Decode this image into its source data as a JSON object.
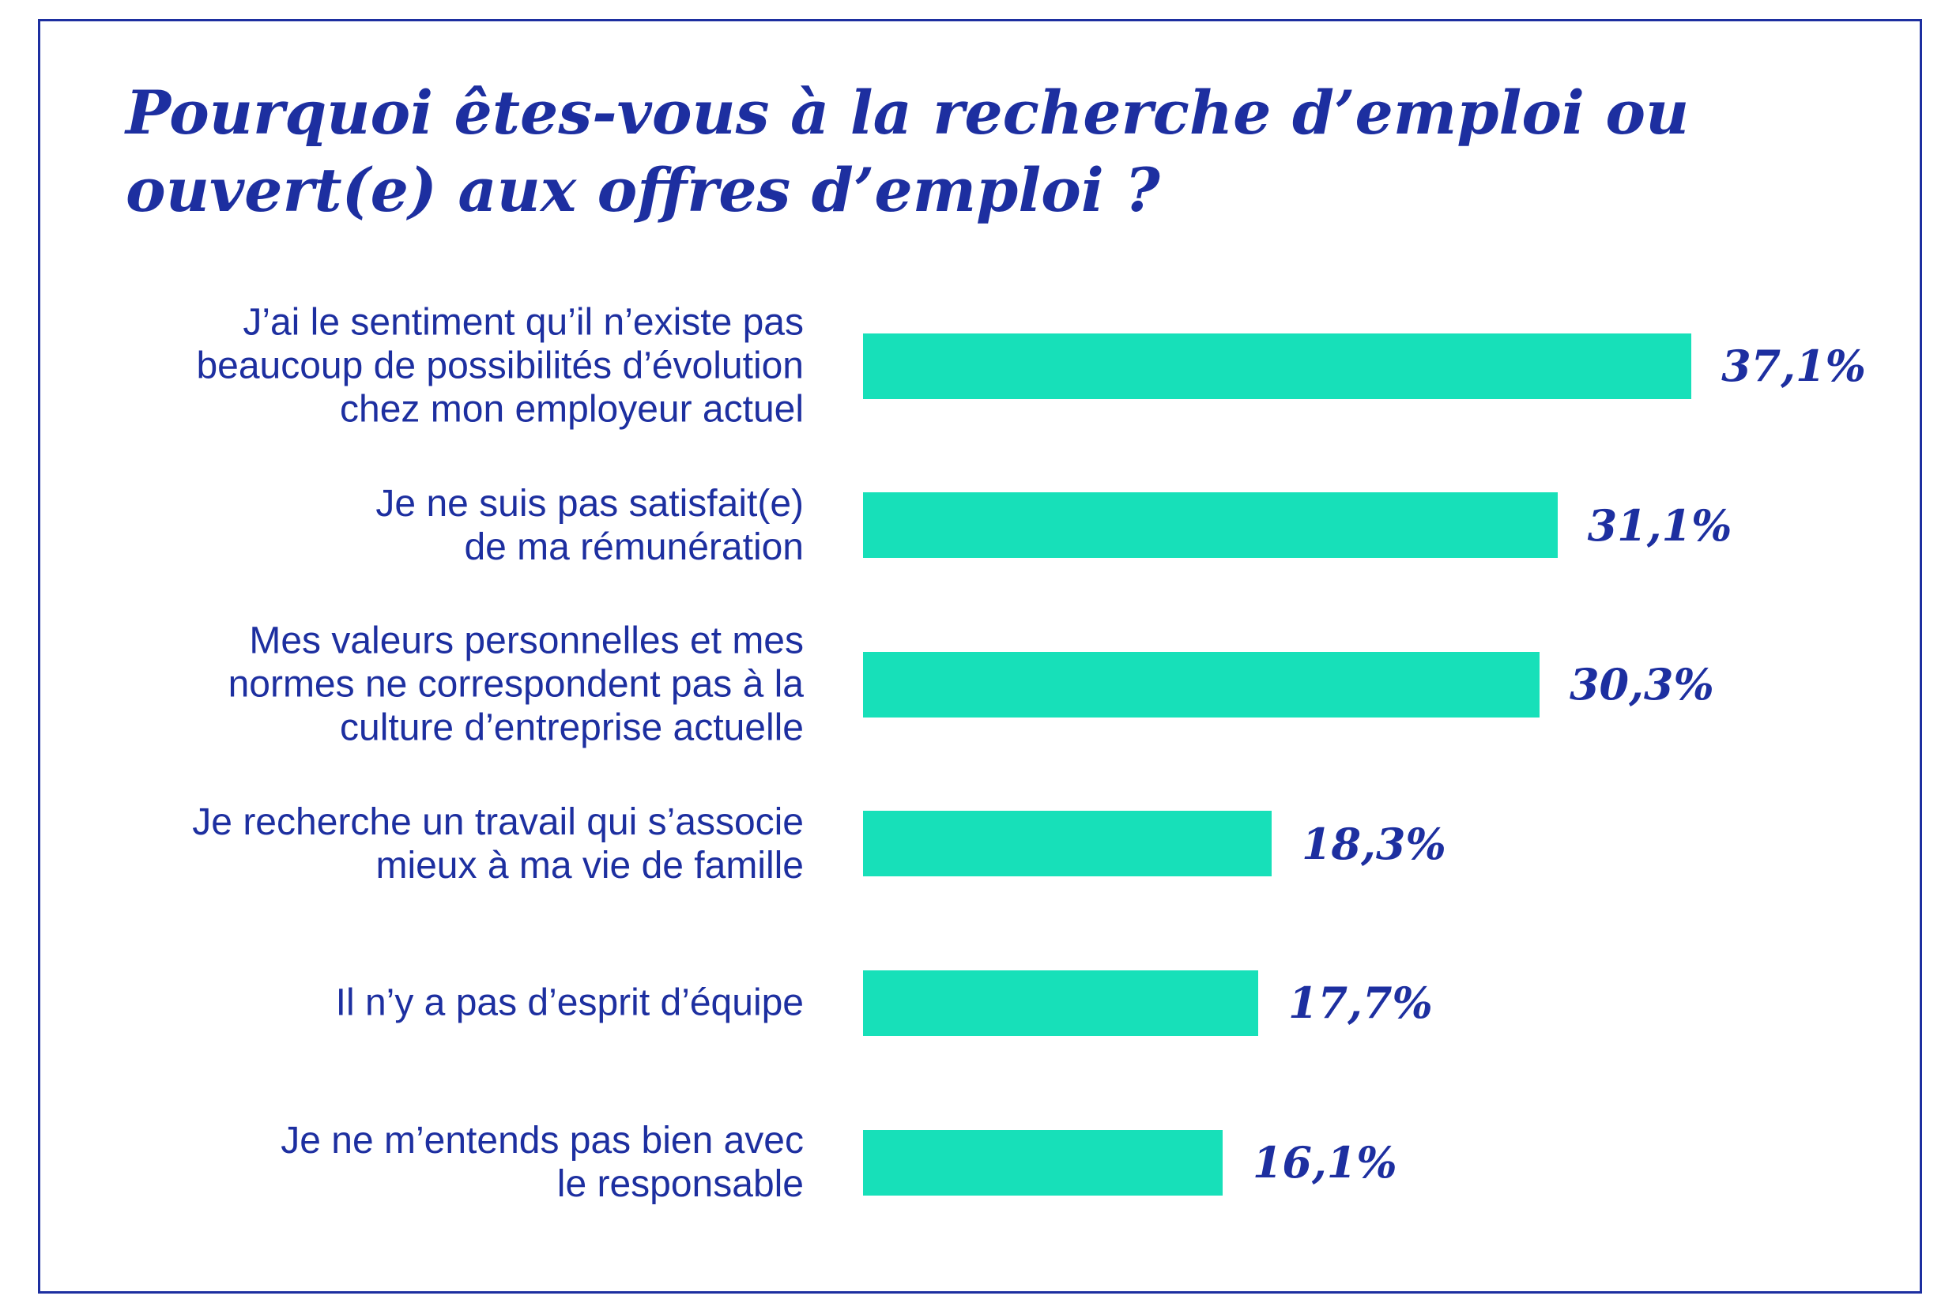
{
  "chart_data": {
    "type": "bar",
    "orientation": "horizontal",
    "title": [
      "Pourquoi êtes-vous à la recherche d’emploi ou",
      "ouvert(e) aux offres d’emploi ?"
    ],
    "categories": [
      [
        "J’ai le sentiment qu’il n’existe pas",
        "beaucoup de possibilités d’évolution",
        "chez mon employeur actuel"
      ],
      [
        "Je ne suis pas satisfait(e)",
        "de ma rémunération"
      ],
      [
        "Mes valeurs personnelles et mes",
        "normes ne correspondent pas à la",
        "culture d’entreprise actuelle"
      ],
      [
        "Je recherche un travail qui s’associe",
        "mieux à ma vie de famille"
      ],
      [
        "Il n’y a pas d’esprit d’équipe"
      ],
      [
        "Je ne m’entends pas bien avec",
        "le responsable"
      ]
    ],
    "values": [
      37.1,
      31.1,
      30.3,
      18.3,
      17.7,
      16.1
    ],
    "value_labels": [
      "37,1%",
      "31,1%",
      "30,3%",
      "18,3%",
      "17,7%",
      "16,1%"
    ],
    "grid": false
  },
  "colors": {
    "background": "#ffffff",
    "text": "#1d2fa0",
    "frame": "#1d2fa0",
    "bar": "#17e0b9"
  }
}
